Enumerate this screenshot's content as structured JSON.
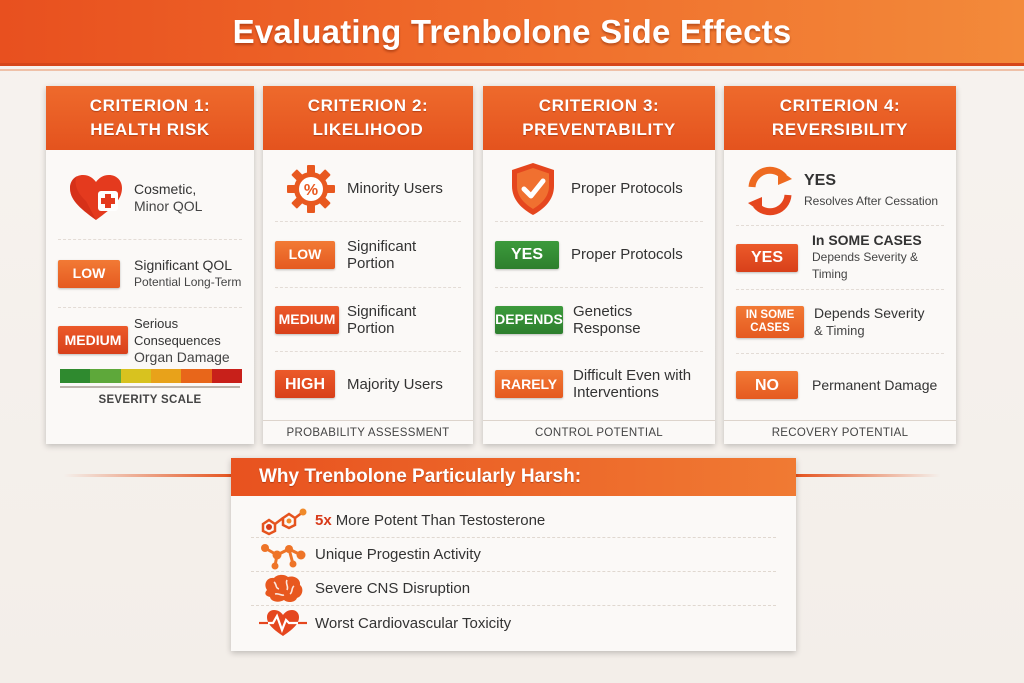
{
  "title": "Evaluating Trenbolone Side Effects",
  "colors": {
    "accent": "#e5531e",
    "green": "#2d7f2d",
    "red": "#d8401a"
  },
  "criteria": [
    {
      "heading_line1": "CRITERION 1:",
      "heading_line2": "HEALTH RISK",
      "footer": "SEVERITY SCALE",
      "rows": [
        {
          "icon": "heart-plus-icon",
          "text": "Cosmetic,",
          "sub": "Minor QOL"
        },
        {
          "badge": "LOW",
          "text": "Significant QOL",
          "sub": "Potential Long-Term"
        },
        {
          "badge": "MEDIUM",
          "text": "Serious Consequences",
          "sub": "Organ Damage"
        }
      ]
    },
    {
      "heading_line1": "CRITERION 2:",
      "heading_line2": "LIKELIHOOD",
      "footer": "PROBABILITY ASSESSMENT",
      "rows": [
        {
          "icon": "percent-gear-icon",
          "text": "Minority Users"
        },
        {
          "badge": "LOW",
          "text": "Significant Portion"
        },
        {
          "badge": "MEDIUM",
          "text": "Significant Portion"
        },
        {
          "badge": "HIGH",
          "text": "Majority Users"
        }
      ]
    },
    {
      "heading_line1": "CRITERION 3:",
      "heading_line2": "PREVENTABILITY",
      "footer": "CONTROL POTENTIAL",
      "rows": [
        {
          "icon": "shield-check-icon",
          "text": "Proper Protocols"
        },
        {
          "badge": "YES",
          "text": "Proper Protocols"
        },
        {
          "badge": "DEPENDS",
          "text": "Genetics Response"
        },
        {
          "badge": "RARELY",
          "text": "Difficult Even with",
          "sub": "Interventions"
        }
      ]
    },
    {
      "heading_line1": "CRITERION 4:",
      "heading_line2": "REVERSIBILITY",
      "footer": "RECOVERY POTENTIAL",
      "rows": [
        {
          "icon": "cycle-arrows-icon",
          "text": "YES",
          "sub": "Resolves After Cessation"
        },
        {
          "badge": "YES",
          "text": "In SOME CASES",
          "sub": "Depends Severity & Timing"
        },
        {
          "badge": "IN SOME CASES",
          "text": "Depends Severity",
          "sub": "& Timing"
        },
        {
          "badge": "NO",
          "text": "Permanent Damage"
        }
      ]
    }
  ],
  "severity_scale_colors": [
    "#2f8a2f",
    "#5ea83a",
    "#d8c21f",
    "#e8a21a",
    "#e8661a",
    "#c8201a"
  ],
  "panel": {
    "heading": "Why Trenbolone Particularly Harsh:",
    "items": [
      {
        "icon": "molecule-chain-icon",
        "accent": "5x",
        "text": "More Potent Than Testosterone"
      },
      {
        "icon": "molecule-network-icon",
        "text": "Unique Progestin Activity"
      },
      {
        "icon": "brain-icon",
        "text": "Severe CNS Disruption"
      },
      {
        "icon": "heartbeat-icon",
        "text": "Worst Cardiovascular Toxicity"
      }
    ]
  }
}
